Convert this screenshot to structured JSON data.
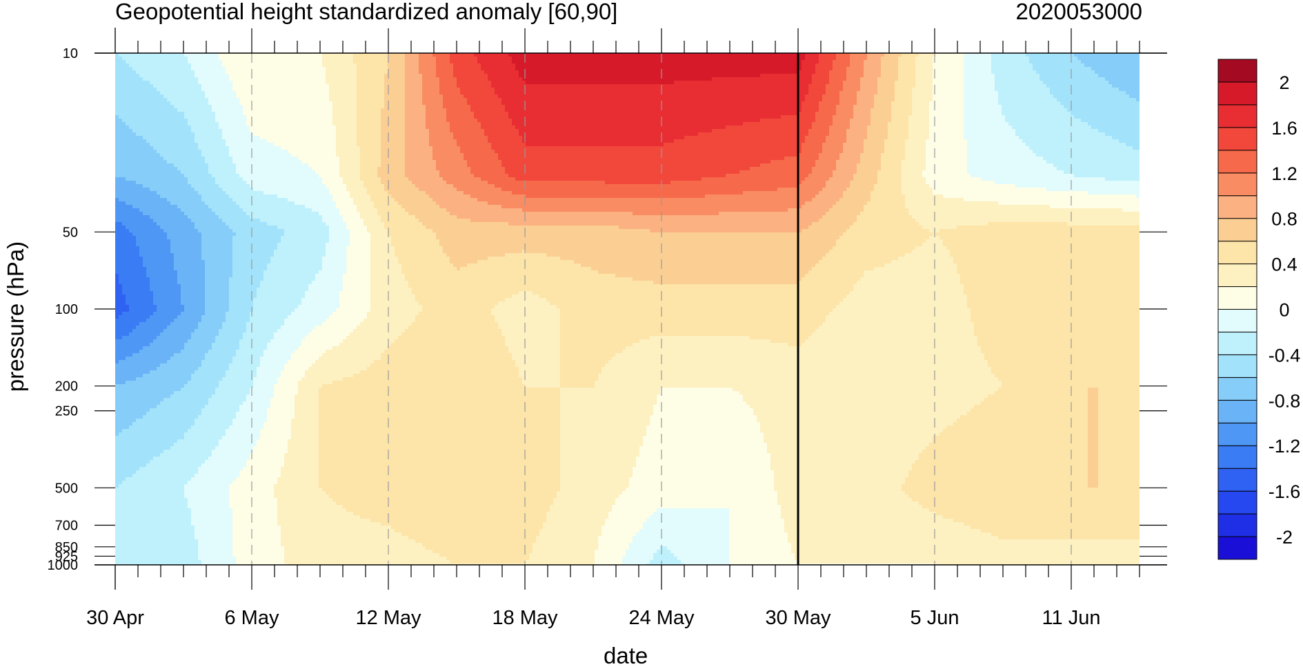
{
  "title_left": "Geopotential height standardized anomaly [60,90]",
  "title_right": "2020053000",
  "chart_data": {
    "type": "heatmap",
    "xlabel": "date",
    "ylabel": "pressure (hPa)",
    "x_tick_labels": [
      "30 Apr",
      "6 May",
      "12 May",
      "18 May",
      "24 May",
      "30 May",
      "5 Jun",
      "11 Jun"
    ],
    "x_tick_days": [
      0,
      6,
      12,
      18,
      24,
      30,
      36,
      42
    ],
    "x_range_days": [
      0,
      45
    ],
    "y_scale": "log",
    "y_ticks": [
      10,
      50,
      100,
      200,
      250,
      500,
      700,
      850,
      925,
      1000
    ],
    "y_tick_labels": [
      "10",
      "50",
      "100",
      "200",
      "250",
      "500",
      "700",
      "850",
      "925",
      "1000"
    ],
    "ylim": [
      1000,
      10
    ],
    "analysis_marker_day": 30,
    "colorbar": {
      "levels": [
        -2.2,
        -2,
        -1.8,
        -1.6,
        -1.4,
        -1.2,
        -1,
        -0.8,
        -0.6,
        -0.4,
        -0.2,
        0,
        0.2,
        0.4,
        0.6,
        0.8,
        1,
        1.2,
        1.4,
        1.6,
        1.8,
        2,
        2.2
      ],
      "labels": [
        "2",
        "1.6",
        "1.2",
        "0.8",
        "0.4",
        "0",
        "-0.4",
        "-0.8",
        "-1.2",
        "-1.6",
        "-2"
      ],
      "label_values": [
        2,
        1.6,
        1.2,
        0.8,
        0.4,
        0,
        -0.4,
        -0.8,
        -1.2,
        -1.6,
        -2
      ],
      "colors": [
        "#1a0fd6",
        "#1e2fe6",
        "#2648f0",
        "#2f62f2",
        "#3a7cf4",
        "#4e97f5",
        "#6ab3f7",
        "#86cdf9",
        "#a2e2fb",
        "#bff1fc",
        "#e2fbfd",
        "#fefde6",
        "#fdf0c1",
        "#fde4a8",
        "#fbcf94",
        "#fbb181",
        "#f98c62",
        "#f66a4b",
        "#f2483c",
        "#e82e33",
        "#d71a2a",
        "#a40a21"
      ]
    },
    "anomaly_field": {
      "days": [
        0,
        3,
        6,
        9,
        12,
        15,
        18,
        21,
        24,
        27,
        30,
        33,
        36,
        39,
        42,
        45
      ],
      "pressure_levels": [
        10,
        30,
        50,
        100,
        200,
        500,
        1000
      ],
      "rows": [
        [
          -0.4,
          -0.2,
          0.2,
          0.2,
          0.6,
          1.5,
          1.9,
          1.9,
          1.9,
          1.9,
          1.9,
          1.0,
          0.2,
          -0.3,
          -0.6,
          -0.8
        ],
        [
          -0.8,
          -0.6,
          -0.1,
          0.0,
          0.7,
          1.1,
          1.5,
          1.5,
          1.5,
          1.4,
          1.3,
          0.7,
          0.1,
          -0.1,
          -0.2,
          -0.3
        ],
        [
          -1.3,
          -0.9,
          -0.5,
          -0.3,
          0.4,
          0.7,
          0.7,
          0.7,
          0.8,
          0.8,
          0.8,
          0.5,
          0.4,
          0.5,
          0.5,
          0.5
        ],
        [
          -1.5,
          -1.0,
          -0.4,
          -0.1,
          0.3,
          0.5,
          0.3,
          0.5,
          0.5,
          0.5,
          0.5,
          0.3,
          0.3,
          0.5,
          0.5,
          0.5
        ],
        [
          -0.8,
          -0.6,
          -0.2,
          0.4,
          0.5,
          0.6,
          0.4,
          0.4,
          0.2,
          0.2,
          0.3,
          0.2,
          0.3,
          0.4,
          0.6,
          0.6
        ],
        [
          -0.4,
          -0.2,
          0.1,
          0.4,
          0.5,
          0.6,
          0.5,
          0.3,
          0.1,
          0.0,
          0.3,
          0.3,
          0.5,
          0.6,
          0.6,
          0.6
        ],
        [
          -0.3,
          -0.3,
          0.1,
          0.3,
          0.3,
          0.4,
          0.4,
          0.2,
          -0.3,
          0.0,
          0.2,
          0.2,
          0.2,
          0.3,
          0.3,
          0.3
        ]
      ]
    }
  }
}
